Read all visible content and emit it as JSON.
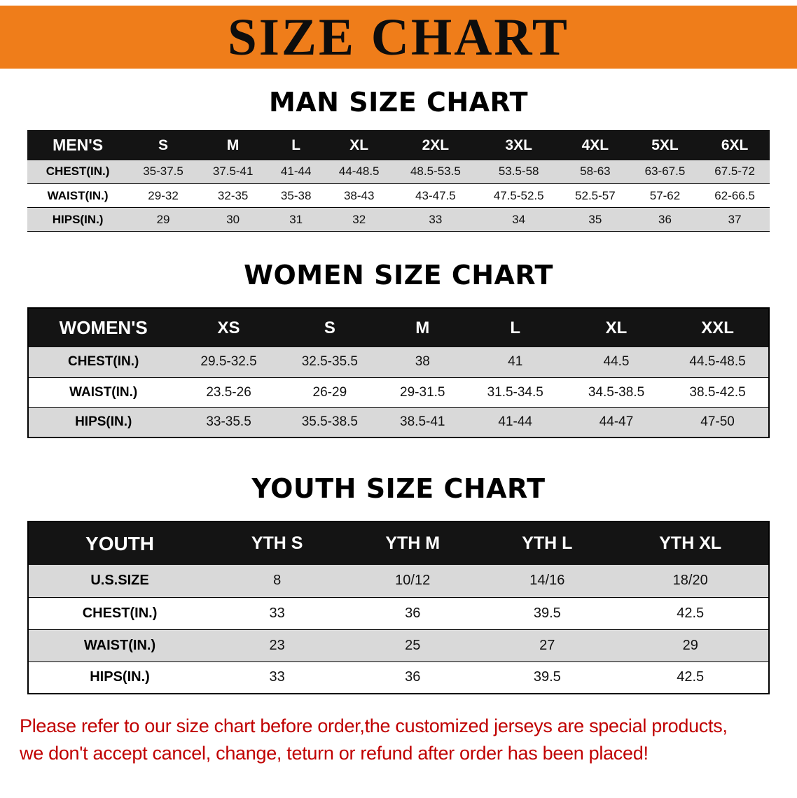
{
  "banner": {
    "title": "SIZE CHART"
  },
  "sections": [
    {
      "heading": "MAN SIZE CHART"
    },
    {
      "heading": "WOMEN SIZE CHART"
    },
    {
      "heading": "YOUTH SIZE CHART"
    }
  ],
  "chart_data": [
    {
      "type": "table",
      "title": "MAN SIZE CHART",
      "header": [
        "MEN'S",
        "S",
        "M",
        "L",
        "XL",
        "2XL",
        "3XL",
        "4XL",
        "5XL",
        "6XL"
      ],
      "rows": [
        [
          "CHEST(IN.)",
          "35-37.5",
          "37.5-41",
          "41-44",
          "44-48.5",
          "48.5-53.5",
          "53.5-58",
          "58-63",
          "63-67.5",
          "67.5-72"
        ],
        [
          "WAIST(IN.)",
          "29-32",
          "32-35",
          "35-38",
          "38-43",
          "43-47.5",
          "47.5-52.5",
          "52.5-57",
          "57-62",
          "62-66.5"
        ],
        [
          "HIPS(IN.)",
          "29",
          "30",
          "31",
          "32",
          "33",
          "34",
          "35",
          "36",
          "37"
        ]
      ]
    },
    {
      "type": "table",
      "title": "WOMEN SIZE CHART",
      "header": [
        "WOMEN'S",
        "XS",
        "S",
        "M",
        "L",
        "XL",
        "XXL"
      ],
      "rows": [
        [
          "CHEST(IN.)",
          "29.5-32.5",
          "32.5-35.5",
          "38",
          "41",
          "44.5",
          "44.5-48.5"
        ],
        [
          "WAIST(IN.)",
          "23.5-26",
          "26-29",
          "29-31.5",
          "31.5-34.5",
          "34.5-38.5",
          "38.5-42.5"
        ],
        [
          "HIPS(IN.)",
          "33-35.5",
          "35.5-38.5",
          "38.5-41",
          "41-44",
          "44-47",
          "47-50"
        ]
      ]
    },
    {
      "type": "table",
      "title": "YOUTH SIZE CHART",
      "header": [
        "YOUTH",
        "YTH S",
        "YTH M",
        "YTH L",
        "YTH XL"
      ],
      "rows": [
        [
          "U.S.SIZE",
          "8",
          "10/12",
          "14/16",
          "18/20"
        ],
        [
          "CHEST(IN.)",
          "33",
          "36",
          "39.5",
          "42.5"
        ],
        [
          "WAIST(IN.)",
          "23",
          "25",
          "27",
          "29"
        ],
        [
          "HIPS(IN.)",
          "33",
          "36",
          "39.5",
          "42.5"
        ]
      ]
    }
  ],
  "note": {
    "line1": "Please refer to our size chart before order,the customized jerseys are special products,",
    "line2": "we don't accept cancel, change, teturn or refund after order has been placed!"
  },
  "colors": {
    "banner-bg": "#EF7D1A",
    "header-bg": "#141414",
    "row-alt": "#D9D9D9",
    "note": "#C00000"
  }
}
